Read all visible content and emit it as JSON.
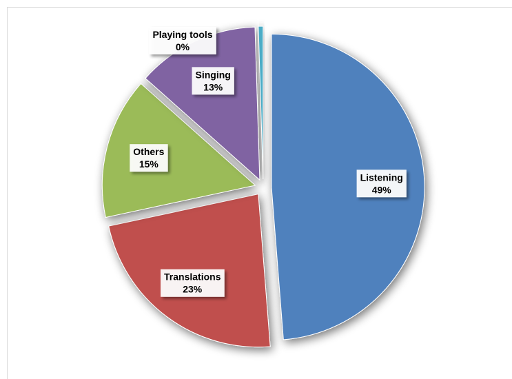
{
  "chart_data": {
    "type": "pie",
    "title": "",
    "slices": [
      {
        "label": "Listening",
        "value": 49,
        "value_label": "49%",
        "color": "#4F81BD"
      },
      {
        "label": "Translations",
        "value": 23,
        "value_label": "23%",
        "color": "#C0504D"
      },
      {
        "label": "Others",
        "value": 15,
        "value_label": "15%",
        "color": "#9BBB59"
      },
      {
        "label": "Singing",
        "value": 13,
        "value_label": "13%",
        "color": "#8064A2"
      },
      {
        "label": "Playing tools",
        "value": 0.5,
        "value_label": "0%",
        "color": "#4BACC6"
      }
    ],
    "legend": "none",
    "exploded": true
  }
}
